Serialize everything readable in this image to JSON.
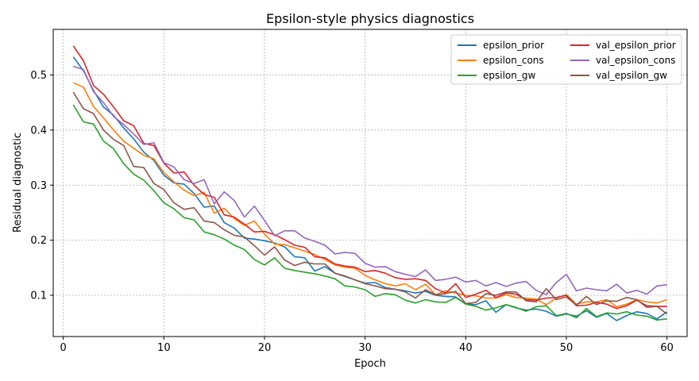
{
  "chart_data": {
    "type": "line",
    "title": "Epsilon-style physics diagnostics",
    "xlabel": "Epoch",
    "ylabel": "Residual diagnostic",
    "xlim": [
      -1,
      62
    ],
    "ylim": [
      0.025,
      0.583
    ],
    "xticks": [
      0,
      10,
      20,
      30,
      40,
      50,
      60
    ],
    "yticks": [
      0.1,
      0.2,
      0.3,
      0.4,
      0.5
    ],
    "grid": true,
    "legend": {
      "position": "top-right",
      "columns": 2
    },
    "x": [
      1,
      2,
      3,
      4,
      5,
      6,
      7,
      8,
      9,
      10,
      11,
      12,
      13,
      14,
      15,
      16,
      17,
      18,
      19,
      20,
      21,
      22,
      23,
      24,
      25,
      26,
      27,
      28,
      29,
      30,
      31,
      32,
      33,
      34,
      35,
      36,
      37,
      38,
      39,
      40,
      41,
      42,
      43,
      44,
      45,
      46,
      47,
      48,
      49,
      50,
      51,
      52,
      53,
      54,
      55,
      56,
      57,
      58,
      59,
      60
    ],
    "series": [
      {
        "name": "epsilon_prior",
        "color": "#1f77b4",
        "values": [
          0.533,
          0.508,
          0.472,
          0.442,
          0.427,
          0.404,
          0.384,
          0.36,
          0.345,
          0.318,
          0.304,
          0.302,
          0.285,
          0.26,
          0.262,
          0.232,
          0.222,
          0.204,
          0.202,
          0.199,
          0.195,
          0.188,
          0.17,
          0.168,
          0.144,
          0.152,
          0.14,
          0.134,
          0.128,
          0.122,
          0.123,
          0.114,
          0.111,
          0.108,
          0.104,
          0.107,
          0.1,
          0.098,
          0.097,
          0.084,
          0.083,
          0.09,
          0.069,
          0.083,
          0.077,
          0.073,
          0.075,
          0.071,
          0.062,
          0.066,
          0.062,
          0.072,
          0.06,
          0.067,
          0.054,
          0.063,
          0.07,
          0.067,
          0.057,
          0.07
        ]
      },
      {
        "name": "epsilon_cons",
        "color": "#ff7f0e",
        "values": [
          0.486,
          0.478,
          0.443,
          0.422,
          0.4,
          0.38,
          0.367,
          0.354,
          0.348,
          0.323,
          0.306,
          0.291,
          0.281,
          0.287,
          0.249,
          0.258,
          0.239,
          0.227,
          0.235,
          0.211,
          0.193,
          0.192,
          0.186,
          0.18,
          0.174,
          0.165,
          0.155,
          0.151,
          0.149,
          0.136,
          0.128,
          0.121,
          0.117,
          0.121,
          0.11,
          0.12,
          0.101,
          0.108,
          0.104,
          0.1,
          0.099,
          0.095,
          0.095,
          0.101,
          0.096,
          0.095,
          0.093,
          0.083,
          0.095,
          0.101,
          0.084,
          0.088,
          0.088,
          0.092,
          0.079,
          0.084,
          0.092,
          0.088,
          0.086,
          0.092
        ]
      },
      {
        "name": "epsilon_gw",
        "color": "#2ca02c",
        "values": [
          0.446,
          0.415,
          0.411,
          0.38,
          0.366,
          0.339,
          0.32,
          0.309,
          0.29,
          0.268,
          0.257,
          0.241,
          0.237,
          0.215,
          0.21,
          0.202,
          0.191,
          0.183,
          0.165,
          0.155,
          0.168,
          0.149,
          0.145,
          0.142,
          0.139,
          0.135,
          0.13,
          0.117,
          0.115,
          0.11,
          0.098,
          0.103,
          0.101,
          0.091,
          0.086,
          0.092,
          0.088,
          0.087,
          0.096,
          0.084,
          0.08,
          0.073,
          0.077,
          0.083,
          0.078,
          0.071,
          0.079,
          0.081,
          0.063,
          0.067,
          0.059,
          0.076,
          0.061,
          0.068,
          0.066,
          0.07,
          0.064,
          0.062,
          0.055,
          0.057
        ]
      },
      {
        "name": "val_epsilon_prior",
        "color": "#d62728",
        "values": [
          0.553,
          0.526,
          0.481,
          0.465,
          0.442,
          0.417,
          0.408,
          0.376,
          0.372,
          0.34,
          0.322,
          0.324,
          0.3,
          0.283,
          0.278,
          0.246,
          0.242,
          0.229,
          0.215,
          0.216,
          0.21,
          0.201,
          0.191,
          0.187,
          0.17,
          0.168,
          0.157,
          0.153,
          0.151,
          0.143,
          0.145,
          0.14,
          0.132,
          0.129,
          0.13,
          0.127,
          0.112,
          0.104,
          0.121,
          0.096,
          0.102,
          0.109,
          0.096,
          0.104,
          0.102,
          0.092,
          0.091,
          0.095,
          0.096,
          0.1,
          0.081,
          0.082,
          0.087,
          0.084,
          0.076,
          0.081,
          0.091,
          0.081,
          0.08,
          0.08
        ]
      },
      {
        "name": "val_epsilon_cons",
        "color": "#9467bd",
        "values": [
          0.516,
          0.51,
          0.47,
          0.45,
          0.425,
          0.41,
          0.393,
          0.374,
          0.377,
          0.341,
          0.333,
          0.31,
          0.303,
          0.31,
          0.266,
          0.288,
          0.272,
          0.242,
          0.262,
          0.236,
          0.208,
          0.217,
          0.217,
          0.204,
          0.198,
          0.191,
          0.175,
          0.178,
          0.176,
          0.158,
          0.151,
          0.152,
          0.143,
          0.138,
          0.134,
          0.146,
          0.127,
          0.129,
          0.133,
          0.124,
          0.127,
          0.117,
          0.123,
          0.116,
          0.122,
          0.125,
          0.109,
          0.101,
          0.123,
          0.138,
          0.108,
          0.113,
          0.11,
          0.108,
          0.12,
          0.104,
          0.109,
          0.102,
          0.117,
          0.119
        ]
      },
      {
        "name": "val_epsilon_gw",
        "color": "#8c564b",
        "values": [
          0.469,
          0.439,
          0.43,
          0.4,
          0.383,
          0.372,
          0.334,
          0.332,
          0.303,
          0.292,
          0.268,
          0.256,
          0.259,
          0.235,
          0.232,
          0.219,
          0.209,
          0.206,
          0.19,
          0.173,
          0.188,
          0.164,
          0.154,
          0.16,
          0.157,
          0.157,
          0.14,
          0.135,
          0.128,
          0.121,
          0.117,
          0.112,
          0.111,
          0.106,
          0.095,
          0.11,
          0.101,
          0.103,
          0.107,
          0.085,
          0.087,
          0.103,
          0.1,
          0.106,
          0.106,
          0.09,
          0.088,
          0.112,
          0.092,
          0.097,
          0.082,
          0.098,
          0.083,
          0.09,
          0.089,
          0.096,
          0.092,
          0.078,
          0.08,
          0.066
        ]
      }
    ]
  }
}
